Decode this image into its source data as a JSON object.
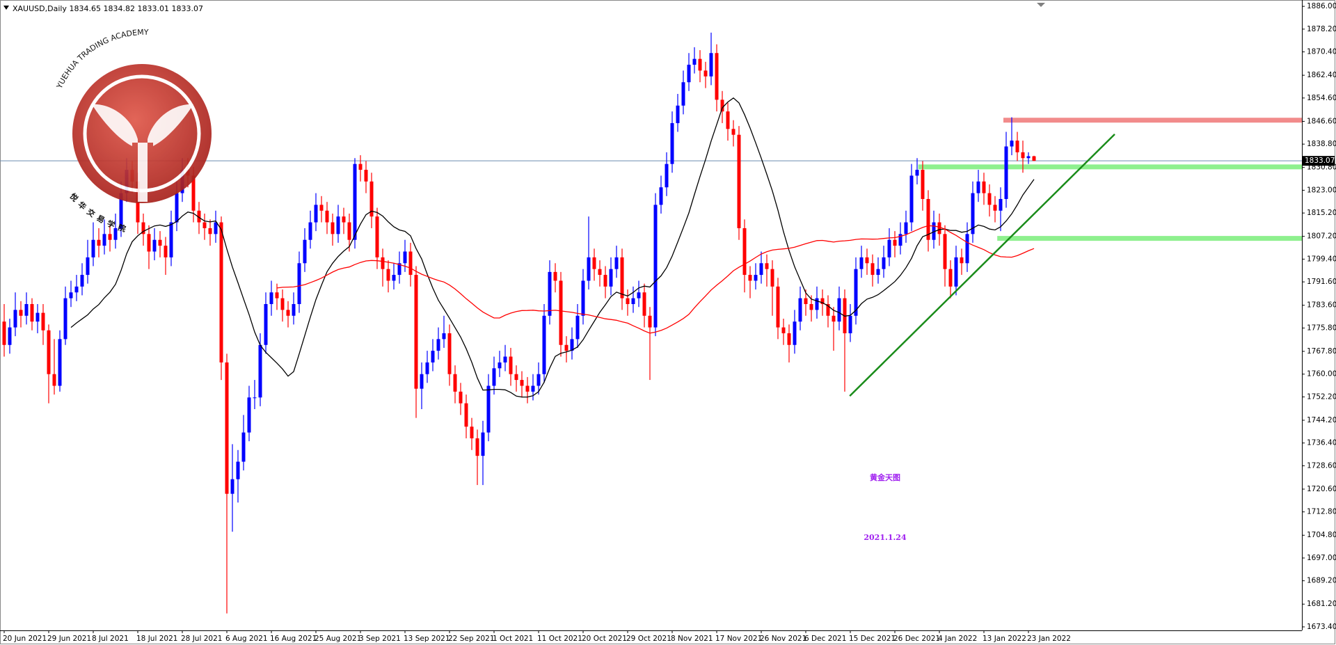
{
  "chart_data": {
    "type": "candlestick",
    "symbol": "XAUUSD,Daily",
    "up_color": "#0000ff",
    "down_color": "#ff0000",
    "ylim": [
      1672.2,
      1887.7
    ],
    "yticks": [
      {
        "value": 1886.0,
        "label": "1886.00"
      },
      {
        "value": 1878.2,
        "label": "1878.20"
      },
      {
        "value": 1870.4,
        "label": "1870.40"
      },
      {
        "value": 1862.4,
        "label": "1862.40"
      },
      {
        "value": 1854.6,
        "label": "1854.60"
      },
      {
        "value": 1846.6,
        "label": "1846.60"
      },
      {
        "value": 1838.8,
        "label": "1838.80"
      },
      {
        "value": 1830.8,
        "label": "1830.80"
      },
      {
        "value": 1823.0,
        "label": "1823.00"
      },
      {
        "value": 1815.2,
        "label": "1815.20"
      },
      {
        "value": 1807.2,
        "label": "1807.20"
      },
      {
        "value": 1799.4,
        "label": "1799.40"
      },
      {
        "value": 1791.6,
        "label": "1791.60"
      },
      {
        "value": 1783.6,
        "label": "1783.60"
      },
      {
        "value": 1775.8,
        "label": "1775.80"
      },
      {
        "value": 1767.8,
        "label": "1767.80"
      },
      {
        "value": 1760.0,
        "label": "1760.00"
      },
      {
        "value": 1752.2,
        "label": "1752.20"
      },
      {
        "value": 1744.2,
        "label": "1744.20"
      },
      {
        "value": 1736.4,
        "label": "1736.40"
      },
      {
        "value": 1728.6,
        "label": "1728.60"
      },
      {
        "value": 1720.6,
        "label": "1720.60"
      },
      {
        "value": 1712.8,
        "label": "1712.80"
      },
      {
        "value": 1704.8,
        "label": "1704.80"
      },
      {
        "value": 1697.0,
        "label": "1697.00"
      },
      {
        "value": 1689.2,
        "label": "1689.20"
      },
      {
        "value": 1681.2,
        "label": "1681.20"
      },
      {
        "value": 1673.4,
        "label": "1673.40"
      }
    ],
    "xticks": [
      {
        "value": 0,
        "label": "20 Jun 2021"
      },
      {
        "value": 8,
        "label": "29 Jun 2021"
      },
      {
        "value": 16,
        "label": "8 Jul 2021"
      },
      {
        "value": 24,
        "label": "18 Jul 2021"
      },
      {
        "value": 32,
        "label": "28 Jul 2021"
      },
      {
        "value": 40,
        "label": "6 Aug 2021"
      },
      {
        "value": 48,
        "label": "16 Aug 2021"
      },
      {
        "value": 56,
        "label": "25 Aug 2021"
      },
      {
        "value": 64,
        "label": "3 Sep 2021"
      },
      {
        "value": 72,
        "label": "13 Sep 2021"
      },
      {
        "value": 80,
        "label": "22 Sep 2021"
      },
      {
        "value": 88,
        "label": "1 Oct 2021"
      },
      {
        "value": 96,
        "label": "11 Oct 2021"
      },
      {
        "value": 104,
        "label": "20 Oct 2021"
      },
      {
        "value": 112,
        "label": "29 Oct 2021"
      },
      {
        "value": 120,
        "label": "8 Nov 2021"
      },
      {
        "value": 128,
        "label": "17 Nov 2021"
      },
      {
        "value": 136,
        "label": "26 Nov 2021"
      },
      {
        "value": 144,
        "label": "6 Dec 2021"
      },
      {
        "value": 152,
        "label": "15 Dec 2021"
      },
      {
        "value": 160,
        "label": "26 Dec 2021"
      },
      {
        "value": 168,
        "label": "4 Jan 2022"
      },
      {
        "value": 176,
        "label": "13 Jan 2022"
      },
      {
        "value": 184,
        "label": "23 Jan 2022"
      }
    ],
    "ohlc": [
      [
        1778,
        1784,
        1766,
        1770
      ],
      [
        1770,
        1779,
        1767,
        1776
      ],
      [
        1776,
        1788,
        1773,
        1782
      ],
      [
        1782,
        1785,
        1776,
        1780
      ],
      [
        1780,
        1788,
        1777,
        1784
      ],
      [
        1784,
        1786,
        1775,
        1778
      ],
      [
        1778,
        1784,
        1774,
        1781
      ],
      [
        1781,
        1784,
        1770,
        1775
      ],
      [
        1775,
        1777,
        1750,
        1760
      ],
      [
        1760,
        1772,
        1753,
        1756
      ],
      [
        1756,
        1775,
        1754,
        1772
      ],
      [
        1772,
        1790,
        1770,
        1786
      ],
      [
        1786,
        1792,
        1783,
        1788
      ],
      [
        1788,
        1794,
        1785,
        1790
      ],
      [
        1790,
        1798,
        1787,
        1794
      ],
      [
        1794,
        1806,
        1791,
        1800
      ],
      [
        1800,
        1812,
        1797,
        1806
      ],
      [
        1806,
        1810,
        1800,
        1804
      ],
      [
        1804,
        1813,
        1801,
        1808
      ],
      [
        1808,
        1811,
        1802,
        1806
      ],
      [
        1806,
        1815,
        1803,
        1810
      ],
      [
        1810,
        1826,
        1807,
        1822
      ],
      [
        1822,
        1834,
        1819,
        1830
      ],
      [
        1830,
        1833,
        1822,
        1826
      ],
      [
        1826,
        1829,
        1808,
        1812
      ],
      [
        1812,
        1815,
        1804,
        1808
      ],
      [
        1808,
        1811,
        1796,
        1802
      ],
      [
        1802,
        1810,
        1799,
        1806
      ],
      [
        1806,
        1809,
        1800,
        1804
      ],
      [
        1804,
        1807,
        1794,
        1800
      ],
      [
        1800,
        1816,
        1797,
        1812
      ],
      [
        1812,
        1826,
        1809,
        1822
      ],
      [
        1822,
        1834,
        1819,
        1830
      ],
      [
        1830,
        1834,
        1824,
        1828
      ],
      [
        1828,
        1831,
        1812,
        1816
      ],
      [
        1816,
        1819,
        1808,
        1812
      ],
      [
        1812,
        1815,
        1806,
        1810
      ],
      [
        1810,
        1813,
        1804,
        1808
      ],
      [
        1808,
        1816,
        1805,
        1812
      ],
      [
        1812,
        1814,
        1758,
        1764
      ],
      [
        1764,
        1767,
        1678,
        1719
      ],
      [
        1719,
        1736,
        1706,
        1724
      ],
      [
        1724,
        1734,
        1716,
        1730
      ],
      [
        1730,
        1746,
        1727,
        1740
      ],
      [
        1740,
        1756,
        1737,
        1752
      ],
      [
        1752,
        1758,
        1748,
        1752
      ],
      [
        1752,
        1774,
        1749,
        1770
      ],
      [
        1770,
        1788,
        1767,
        1784
      ],
      [
        1784,
        1792,
        1780,
        1788
      ],
      [
        1788,
        1791,
        1782,
        1786
      ],
      [
        1786,
        1789,
        1778,
        1782
      ],
      [
        1782,
        1785,
        1776,
        1780
      ],
      [
        1780,
        1788,
        1777,
        1784
      ],
      [
        1784,
        1802,
        1781,
        1798
      ],
      [
        1798,
        1810,
        1795,
        1806
      ],
      [
        1806,
        1816,
        1803,
        1812
      ],
      [
        1812,
        1822,
        1809,
        1818
      ],
      [
        1818,
        1821,
        1812,
        1816
      ],
      [
        1816,
        1819,
        1808,
        1812
      ],
      [
        1812,
        1815,
        1804,
        1808
      ],
      [
        1808,
        1818,
        1805,
        1814
      ],
      [
        1814,
        1817,
        1808,
        1812
      ],
      [
        1812,
        1815,
        1802,
        1806
      ],
      [
        1806,
        1834,
        1803,
        1832
      ],
      [
        1832,
        1835,
        1826,
        1830
      ],
      [
        1830,
        1833,
        1822,
        1826
      ],
      [
        1826,
        1829,
        1810,
        1814
      ],
      [
        1814,
        1817,
        1796,
        1800
      ],
      [
        1800,
        1803,
        1790,
        1796
      ],
      [
        1796,
        1799,
        1788,
        1792
      ],
      [
        1792,
        1798,
        1789,
        1794
      ],
      [
        1794,
        1802,
        1791,
        1798
      ],
      [
        1798,
        1806,
        1795,
        1802
      ],
      [
        1802,
        1805,
        1790,
        1794
      ],
      [
        1794,
        1797,
        1745,
        1755
      ],
      [
        1755,
        1764,
        1748,
        1760
      ],
      [
        1760,
        1768,
        1757,
        1764
      ],
      [
        1764,
        1772,
        1761,
        1768
      ],
      [
        1768,
        1776,
        1765,
        1772
      ],
      [
        1772,
        1780,
        1769,
        1774
      ],
      [
        1774,
        1777,
        1756,
        1760
      ],
      [
        1760,
        1763,
        1750,
        1754
      ],
      [
        1754,
        1757,
        1746,
        1750
      ],
      [
        1750,
        1753,
        1738,
        1742
      ],
      [
        1742,
        1745,
        1734,
        1738
      ],
      [
        1738,
        1741,
        1722,
        1732
      ],
      [
        1732,
        1744,
        1722,
        1740
      ],
      [
        1740,
        1760,
        1737,
        1756
      ],
      [
        1756,
        1766,
        1753,
        1762
      ],
      [
        1762,
        1768,
        1759,
        1764
      ],
      [
        1764,
        1770,
        1761,
        1766
      ],
      [
        1766,
        1769,
        1756,
        1760
      ],
      [
        1760,
        1763,
        1754,
        1758
      ],
      [
        1758,
        1761,
        1752,
        1756
      ],
      [
        1756,
        1759,
        1750,
        1754
      ],
      [
        1754,
        1760,
        1751,
        1756
      ],
      [
        1756,
        1764,
        1753,
        1760
      ],
      [
        1760,
        1784,
        1757,
        1780
      ],
      [
        1780,
        1799,
        1777,
        1795
      ],
      [
        1795,
        1798,
        1788,
        1792
      ],
      [
        1792,
        1795,
        1766,
        1770
      ],
      [
        1770,
        1773,
        1764,
        1768
      ],
      [
        1768,
        1776,
        1765,
        1772
      ],
      [
        1772,
        1784,
        1769,
        1780
      ],
      [
        1780,
        1796,
        1777,
        1792
      ],
      [
        1792,
        1814,
        1789,
        1800
      ],
      [
        1800,
        1803,
        1792,
        1796
      ],
      [
        1796,
        1799,
        1790,
        1794
      ],
      [
        1794,
        1797,
        1786,
        1790
      ],
      [
        1790,
        1800,
        1787,
        1796
      ],
      [
        1796,
        1804,
        1793,
        1800
      ],
      [
        1800,
        1803,
        1782,
        1786
      ],
      [
        1786,
        1789,
        1780,
        1784
      ],
      [
        1784,
        1790,
        1781,
        1786
      ],
      [
        1786,
        1792,
        1783,
        1788
      ],
      [
        1788,
        1791,
        1776,
        1780
      ],
      [
        1780,
        1783,
        1758,
        1776
      ],
      [
        1776,
        1822,
        1773,
        1818
      ],
      [
        1818,
        1828,
        1815,
        1824
      ],
      [
        1824,
        1836,
        1821,
        1832
      ],
      [
        1832,
        1850,
        1829,
        1846
      ],
      [
        1846,
        1856,
        1843,
        1852
      ],
      [
        1852,
        1864,
        1849,
        1860
      ],
      [
        1860,
        1870,
        1857,
        1866
      ],
      [
        1866,
        1872,
        1863,
        1868
      ],
      [
        1868,
        1871,
        1860,
        1864
      ],
      [
        1864,
        1867,
        1858,
        1862
      ],
      [
        1862,
        1877,
        1859,
        1870
      ],
      [
        1870,
        1873,
        1850,
        1854
      ],
      [
        1854,
        1857,
        1846,
        1850
      ],
      [
        1850,
        1853,
        1840,
        1844
      ],
      [
        1844,
        1847,
        1838,
        1842
      ],
      [
        1842,
        1845,
        1806,
        1810
      ],
      [
        1810,
        1813,
        1788,
        1794
      ],
      [
        1794,
        1797,
        1786,
        1792
      ],
      [
        1792,
        1798,
        1789,
        1794
      ],
      [
        1794,
        1802,
        1791,
        1798
      ],
      [
        1798,
        1801,
        1790,
        1796
      ],
      [
        1796,
        1799,
        1780,
        1790
      ],
      [
        1790,
        1793,
        1772,
        1776
      ],
      [
        1776,
        1779,
        1770,
        1774
      ],
      [
        1774,
        1777,
        1764,
        1770
      ],
      [
        1770,
        1782,
        1767,
        1778
      ],
      [
        1778,
        1790,
        1775,
        1786
      ],
      [
        1786,
        1789,
        1780,
        1784
      ],
      [
        1784,
        1787,
        1778,
        1782
      ],
      [
        1782,
        1790,
        1779,
        1786
      ],
      [
        1786,
        1789,
        1780,
        1784
      ],
      [
        1784,
        1787,
        1776,
        1780
      ],
      [
        1780,
        1783,
        1768,
        1778
      ],
      [
        1778,
        1790,
        1775,
        1786
      ],
      [
        1786,
        1789,
        1754,
        1774
      ],
      [
        1774,
        1784,
        1771,
        1780
      ],
      [
        1780,
        1800,
        1777,
        1796
      ],
      [
        1796,
        1804,
        1793,
        1800
      ],
      [
        1800,
        1803,
        1794,
        1798
      ],
      [
        1798,
        1801,
        1790,
        1794
      ],
      [
        1794,
        1800,
        1791,
        1796
      ],
      [
        1796,
        1804,
        1793,
        1800
      ],
      [
        1800,
        1810,
        1797,
        1806
      ],
      [
        1806,
        1809,
        1800,
        1804
      ],
      [
        1804,
        1812,
        1801,
        1808
      ],
      [
        1808,
        1816,
        1805,
        1812
      ],
      [
        1812,
        1832,
        1809,
        1828
      ],
      [
        1828,
        1834,
        1825,
        1830
      ],
      [
        1830,
        1833,
        1816,
        1820
      ],
      [
        1820,
        1823,
        1802,
        1806
      ],
      [
        1806,
        1816,
        1803,
        1812
      ],
      [
        1812,
        1815,
        1804,
        1808
      ],
      [
        1808,
        1811,
        1790,
        1796
      ],
      [
        1796,
        1799,
        1786,
        1790
      ],
      [
        1790,
        1804,
        1787,
        1800
      ],
      [
        1800,
        1803,
        1794,
        1798
      ],
      [
        1798,
        1812,
        1795,
        1808
      ],
      [
        1808,
        1826,
        1805,
        1822
      ],
      [
        1822,
        1830,
        1819,
        1826
      ],
      [
        1826,
        1829,
        1818,
        1822
      ],
      [
        1822,
        1825,
        1814,
        1818
      ],
      [
        1818,
        1821,
        1812,
        1816
      ],
      [
        1816,
        1824,
        1809,
        1820
      ],
      [
        1820,
        1843,
        1817,
        1838
      ],
      [
        1838,
        1848,
        1835,
        1840
      ],
      [
        1840,
        1843,
        1833,
        1836
      ],
      [
        1836,
        1840,
        1829,
        1834
      ],
      [
        1834,
        1836,
        1832,
        1834.65
      ],
      [
        1834.65,
        1834.82,
        1833.01,
        1833.07
      ]
    ],
    "indicators": [
      {
        "type": "sma",
        "period": 13,
        "color": "#000000"
      },
      {
        "type": "sma",
        "period": 50,
        "color": "#ff0000"
      }
    ],
    "zones": [
      {
        "price": 1847,
        "from": 179.5,
        "color": "#f28b8b"
      },
      {
        "price": 1831,
        "from": 164.2,
        "color": "#8ef08e"
      },
      {
        "price": 1806.5,
        "from": 178.4,
        "color": "#8ef08e"
      }
    ],
    "trendline": {
      "x": [
        151.9,
        199.5
      ],
      "y": [
        1752.5,
        1842.2
      ],
      "color": "#1a8c1a"
    },
    "price_line_color": "#6a8caf",
    "annotations": [
      "黄金天图",
      "2021.1.24"
    ],
    "logo": {
      "arc_text": "YUEHUA TRADING ACADEMY",
      "chinese": "悦华交易学院"
    }
  }
}
